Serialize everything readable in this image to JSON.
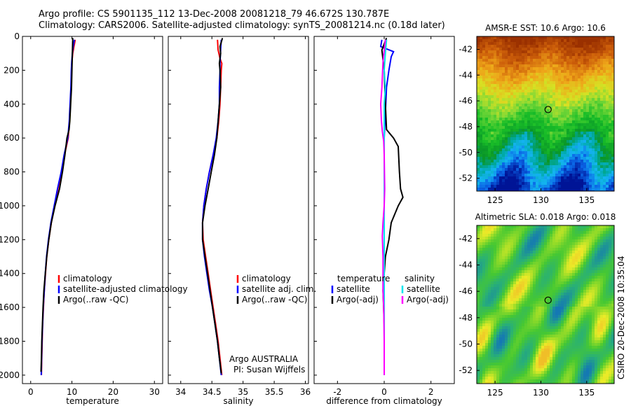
{
  "header": {
    "line1": "Argo profile: CS 5901135_112 13-Dec-2008 20081218_79 46.672S 130.787E",
    "line2": "Climatology: CARS2006. Satellite-adjusted climatology: synTS_20081214.nc (0.18d later)"
  },
  "footer": {
    "credit_line1": "Argo AUSTRALIA",
    "credit_line2": "PI: Susan Wijffels",
    "stamp": "CSIRO 20-Dec-2008 10:35:04"
  },
  "colors": {
    "climatology": "#ff0000",
    "satellite": "#0000ff",
    "argo": "#000000",
    "satellite_salinity": "#00e5ee",
    "argo_salinity": "#ff00ff"
  },
  "chart_data": [
    {
      "type": "line",
      "name": "temperature-panel",
      "xlabel": "temperature",
      "ylabel": "",
      "xlim": [
        -2,
        32
      ],
      "ylim": [
        2050,
        0
      ],
      "xticks": [
        0,
        10,
        20,
        30
      ],
      "yticks": [
        0,
        200,
        400,
        600,
        800,
        1000,
        1200,
        1400,
        1600,
        1800,
        2000
      ],
      "legend": [
        "climatology",
        "satellite-adjusted climatology",
        "Argo(..raw -QC)"
      ],
      "series": [
        {
          "name": "climatology",
          "color": "#ff0000",
          "points": [
            [
              10.8,
              20
            ],
            [
              10.5,
              60
            ],
            [
              10.2,
              100
            ],
            [
              10.0,
              150
            ],
            [
              9.9,
              200
            ],
            [
              9.8,
              300
            ],
            [
              9.6,
              400
            ],
            [
              9.4,
              500
            ],
            [
              9.1,
              600
            ],
            [
              8.2,
              700
            ],
            [
              7.5,
              800
            ],
            [
              6.6,
              900
            ],
            [
              5.8,
              1000
            ],
            [
              5.0,
              1100
            ],
            [
              4.4,
              1200
            ],
            [
              3.9,
              1300
            ],
            [
              3.6,
              1400
            ],
            [
              3.3,
              1500
            ],
            [
              3.1,
              1600
            ],
            [
              2.9,
              1700
            ],
            [
              2.8,
              1800
            ],
            [
              2.7,
              1900
            ],
            [
              2.6,
              2000
            ]
          ]
        },
        {
          "name": "satellite-adjusted climatology",
          "color": "#0000ff",
          "points": [
            [
              10.6,
              20
            ],
            [
              10.3,
              60
            ],
            [
              10.1,
              100
            ],
            [
              9.95,
              150
            ],
            [
              9.85,
              200
            ],
            [
              9.75,
              300
            ],
            [
              9.55,
              400
            ],
            [
              9.35,
              500
            ],
            [
              9.0,
              600
            ],
            [
              8.1,
              700
            ],
            [
              7.4,
              800
            ],
            [
              6.5,
              900
            ],
            [
              5.7,
              1000
            ],
            [
              4.9,
              1100
            ],
            [
              4.3,
              1200
            ],
            [
              3.85,
              1300
            ],
            [
              3.55,
              1400
            ],
            [
              3.3,
              1500
            ],
            [
              3.05,
              1600
            ],
            [
              2.9,
              1700
            ],
            [
              2.75,
              1800
            ],
            [
              2.65,
              1900
            ],
            [
              2.55,
              2000
            ]
          ]
        },
        {
          "name": "Argo(..raw -QC)",
          "color": "#000000",
          "points": [
            [
              10.2,
              10
            ],
            [
              10.1,
              100
            ],
            [
              10.0,
              200
            ],
            [
              9.9,
              300
            ],
            [
              9.7,
              400
            ],
            [
              9.5,
              500
            ],
            [
              9.3,
              550
            ],
            [
              8.8,
              600
            ],
            [
              8.3,
              700
            ],
            [
              7.7,
              800
            ],
            [
              7.0,
              900
            ],
            [
              5.9,
              1000
            ],
            [
              5.0,
              1100
            ],
            [
              4.4,
              1200
            ],
            [
              3.9,
              1300
            ],
            [
              3.55,
              1400
            ],
            [
              3.2,
              1500
            ],
            [
              3.0,
              1600
            ],
            [
              2.85,
              1700
            ],
            [
              2.7,
              1800
            ],
            [
              2.6,
              1900
            ],
            [
              2.5,
              1980
            ]
          ]
        }
      ]
    },
    {
      "type": "line",
      "name": "salinity-panel",
      "xlabel": "salinity",
      "ylabel": "",
      "xlim": [
        33.8,
        36.05
      ],
      "ylim": [
        2050,
        0
      ],
      "xticks": [
        34,
        34.5,
        35,
        35.5,
        36
      ],
      "yticks": [],
      "legend": [
        "climatology",
        "satellite adj. clim.",
        "Argo(..raw -QC)"
      ],
      "series": [
        {
          "name": "climatology",
          "color": "#ff0000",
          "points": [
            [
              34.59,
              20
            ],
            [
              34.6,
              80
            ],
            [
              34.63,
              130
            ],
            [
              34.66,
              160
            ],
            [
              34.65,
              200
            ],
            [
              34.64,
              300
            ],
            [
              34.63,
              400
            ],
            [
              34.61,
              500
            ],
            [
              34.58,
              600
            ],
            [
              34.52,
              700
            ],
            [
              34.46,
              800
            ],
            [
              34.41,
              900
            ],
            [
              34.37,
              1000
            ],
            [
              34.35,
              1100
            ],
            [
              34.36,
              1200
            ],
            [
              34.4,
              1300
            ],
            [
              34.44,
              1400
            ],
            [
              34.48,
              1500
            ],
            [
              34.52,
              1600
            ],
            [
              34.56,
              1700
            ],
            [
              34.6,
              1800
            ],
            [
              34.63,
              1900
            ],
            [
              34.66,
              2000
            ]
          ]
        },
        {
          "name": "satellite adj. clim.",
          "color": "#0000ff",
          "points": [
            [
              34.65,
              20
            ],
            [
              34.64,
              80
            ],
            [
              34.63,
              160
            ],
            [
              34.63,
              200
            ],
            [
              34.62,
              300
            ],
            [
              34.62,
              400
            ],
            [
              34.6,
              500
            ],
            [
              34.57,
              600
            ],
            [
              34.52,
              700
            ],
            [
              34.46,
              800
            ],
            [
              34.41,
              900
            ],
            [
              34.37,
              1000
            ],
            [
              34.35,
              1100
            ],
            [
              34.35,
              1200
            ],
            [
              34.38,
              1300
            ],
            [
              34.42,
              1400
            ],
            [
              34.46,
              1500
            ],
            [
              34.51,
              1600
            ],
            [
              34.55,
              1700
            ],
            [
              34.59,
              1800
            ],
            [
              34.62,
              1900
            ],
            [
              34.65,
              2000
            ]
          ]
        },
        {
          "name": "Argo(..raw -QC)",
          "color": "#000000",
          "points": [
            [
              34.67,
              10
            ],
            [
              34.63,
              60
            ],
            [
              34.64,
              100
            ],
            [
              34.62,
              160
            ],
            [
              34.63,
              200
            ],
            [
              34.64,
              300
            ],
            [
              34.62,
              400
            ],
            [
              34.6,
              500
            ],
            [
              34.58,
              600
            ],
            [
              34.54,
              700
            ],
            [
              34.49,
              800
            ],
            [
              34.44,
              900
            ],
            [
              34.39,
              1000
            ],
            [
              34.35,
              1100
            ],
            [
              34.35,
              1200
            ],
            [
              34.39,
              1300
            ],
            [
              34.43,
              1400
            ],
            [
              34.47,
              1500
            ],
            [
              34.51,
              1600
            ],
            [
              34.55,
              1700
            ],
            [
              34.59,
              1800
            ],
            [
              34.62,
              1900
            ],
            [
              34.65,
              1990
            ]
          ]
        }
      ]
    },
    {
      "type": "line",
      "name": "difference-panel",
      "xlabel": "difference from climatology",
      "ylabel": "",
      "xlim": [
        -3,
        3
      ],
      "ylim": [
        2050,
        0
      ],
      "xticks": [
        -2,
        0,
        2
      ],
      "yticks": [],
      "legend_left_title": "temperature",
      "legend_right_title": "salinity",
      "legend": [
        "satellite",
        "Argo(-adj)",
        "satellite",
        "Argo(-adj)"
      ],
      "series": [
        {
          "name": "satellite",
          "color": "#0000ff",
          "points": [
            [
              -0.1,
              20
            ],
            [
              -0.15,
              60
            ],
            [
              0.4,
              90
            ],
            [
              0.3,
              120
            ],
            [
              0.2,
              200
            ],
            [
              0.1,
              300
            ],
            [
              0.05,
              450
            ],
            [
              0.0,
              600
            ],
            [
              0.0,
              800
            ],
            [
              0.0,
              1000
            ],
            [
              0.0,
              1200
            ],
            [
              0.0,
              1500
            ],
            [
              0.0,
              1800
            ],
            [
              0.0,
              2000
            ]
          ]
        },
        {
          "name": "Argo(-adj)",
          "color": "#000000",
          "points": [
            [
              0.1,
              10
            ],
            [
              -0.1,
              80
            ],
            [
              0.0,
              200
            ],
            [
              0.05,
              400
            ],
            [
              0.1,
              550
            ],
            [
              0.4,
              600
            ],
            [
              0.6,
              650
            ],
            [
              0.65,
              800
            ],
            [
              0.7,
              900
            ],
            [
              0.8,
              950
            ],
            [
              0.6,
              1000
            ],
            [
              0.3,
              1100
            ],
            [
              0.2,
              1200
            ],
            [
              0.05,
              1300
            ],
            [
              -0.05,
              1500
            ],
            [
              0.0,
              1700
            ],
            [
              0.0,
              1850
            ],
            [
              0.0,
              2000
            ]
          ]
        },
        {
          "name": "satellite",
          "color": "#00e5ee",
          "points": [
            [
              0.1,
              20
            ],
            [
              0.05,
              100
            ],
            [
              0.0,
              200
            ],
            [
              0.05,
              300
            ],
            [
              0.0,
              400
            ],
            [
              0.0,
              600
            ],
            [
              0.0,
              800
            ],
            [
              0.0,
              1000
            ],
            [
              0.0,
              1200
            ],
            [
              0.0,
              1400
            ],
            [
              0.0,
              1600
            ],
            [
              0.0,
              1800
            ],
            [
              0.0,
              2000
            ]
          ]
        },
        {
          "name": "Argo(-adj)",
          "color": "#ff00ff",
          "points": [
            [
              0.05,
              20
            ],
            [
              -0.05,
              150
            ],
            [
              -0.1,
              300
            ],
            [
              -0.15,
              400
            ],
            [
              -0.12,
              500
            ],
            [
              -0.08,
              560
            ],
            [
              -0.02,
              620
            ],
            [
              0.0,
              700
            ],
            [
              0.02,
              900
            ],
            [
              0.0,
              1000
            ],
            [
              -0.05,
              1100
            ],
            [
              -0.08,
              1180
            ],
            [
              -0.05,
              1300
            ],
            [
              -0.05,
              1500
            ],
            [
              -0.02,
              1600
            ],
            [
              0.0,
              1800
            ],
            [
              0.0,
              2000
            ]
          ]
        }
      ]
    },
    {
      "type": "heatmap",
      "name": "sst-map",
      "title": "AMSR-E SST: 10.6 Argo: 10.6",
      "xlim": [
        123,
        138
      ],
      "ylim": [
        -53,
        -41
      ],
      "xticks": [
        125,
        130,
        135
      ],
      "yticks": [
        -42,
        -44,
        -46,
        -48,
        -50,
        -52
      ],
      "marker": {
        "lon": 130.787,
        "lat": -46.672
      }
    },
    {
      "type": "heatmap",
      "name": "sla-map",
      "title": "Altimetric SLA: 0.018 Argo: 0.018",
      "xlim": [
        123,
        138
      ],
      "ylim": [
        -53,
        -41
      ],
      "xticks": [
        125,
        130,
        135
      ],
      "yticks": [
        -42,
        -44,
        -46,
        -48,
        -50,
        -52
      ],
      "marker": {
        "lon": 130.787,
        "lat": -46.672
      }
    }
  ]
}
